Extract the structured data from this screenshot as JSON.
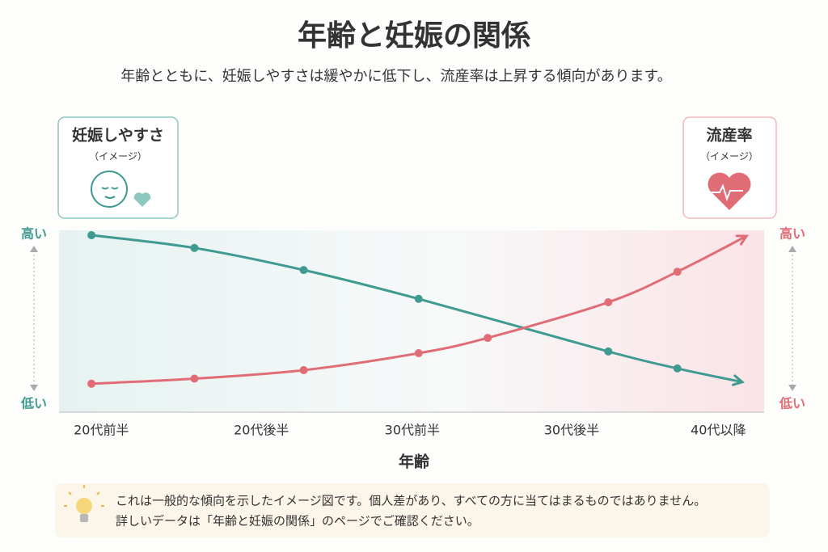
{
  "chart_data": {
    "type": "line",
    "title": "年齢と妊娠の関係",
    "subtitle": "年齢とともに、妊娠しやすさは緩やかに低下し、流産率は上昇する傾向があります。",
    "x_label": "年齢",
    "xlim": [
      0,
      100
    ],
    "xticks": [
      {
        "value": 6,
        "label": "20代前半"
      },
      {
        "value": 28.7,
        "label": "20代後半"
      },
      {
        "value": 50.1,
        "label": "30代前半"
      },
      {
        "value": 72.7,
        "label": "30代後半"
      },
      {
        "value": 93.5,
        "label": "40代以降"
      }
    ],
    "ylim": [
      0,
      100
    ],
    "yticks": [
      {
        "value": 0,
        "label": "低い"
      },
      {
        "value": 100,
        "label": "高い"
      }
    ],
    "y2lim": [
      0,
      100
    ],
    "y2ticks": [
      {
        "value": 0,
        "label": "低い"
      },
      {
        "value": 100,
        "label": "高い"
      }
    ],
    "series": [
      {
        "name": "妊娠しやすさ",
        "note": "（イメージ）",
        "color": "#3f9a91",
        "x": [
          4.6,
          19.2,
          34.7,
          51,
          77.9,
          87.7,
          96.9
        ],
        "values": [
          99.5,
          92,
          79,
          62,
          31,
          21,
          13
        ]
      },
      {
        "name": "流産率",
        "note": "（イメージ）",
        "color": "#e06c75",
        "axis": "y2",
        "x": [
          4.6,
          19.2,
          34.7,
          51,
          60.8,
          77.9,
          87.7,
          97.5
        ],
        "values": [
          12,
          15,
          20,
          30,
          39,
          60,
          78,
          99
        ]
      }
    ],
    "notes": [
      "これは一般的な傾向を示したイメージ図です。個人差があり、すべての方に当てはまるものではありません。",
      "詳しいデータは「年齢と妊娠の関係」のページでご確認ください。"
    ]
  }
}
